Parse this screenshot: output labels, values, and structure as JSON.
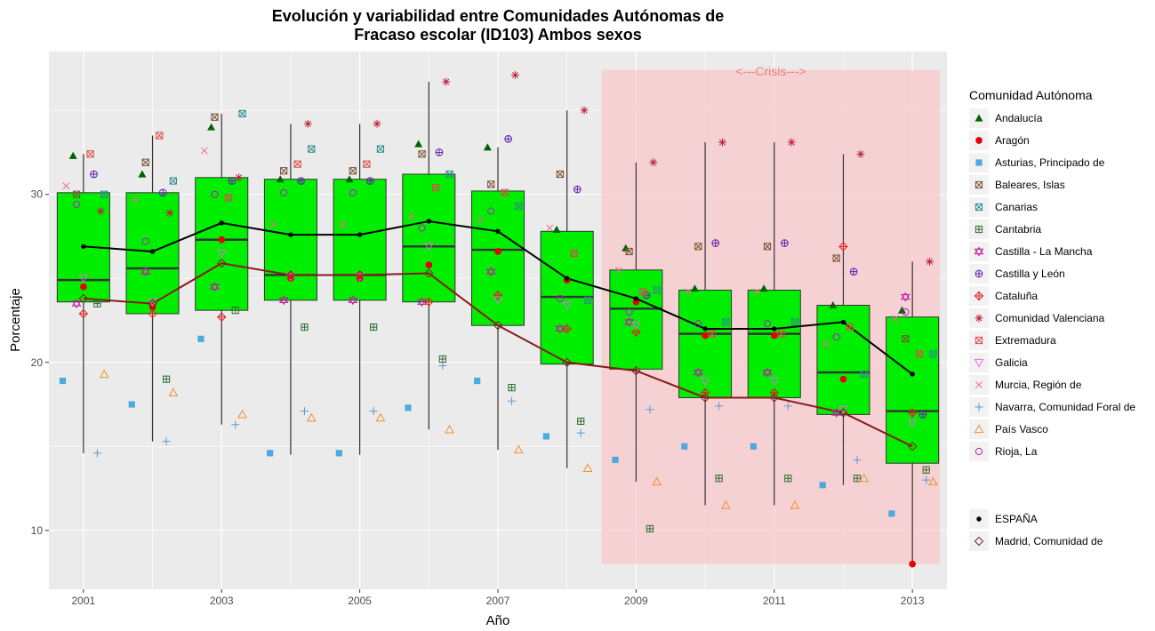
{
  "chart_data": {
    "type": "box",
    "title_line1": "Evolución y variabilidad entre Comunidades Autónomas de",
    "title_line2": "Fracaso escolar (ID103) Ambos sexos",
    "xlabel": "Año",
    "ylabel": "Porcentaje",
    "xlim": [
      2000.5,
      2013.5
    ],
    "ylim": [
      6.5,
      38.5
    ],
    "x_ticks": [
      2001,
      2003,
      2005,
      2007,
      2009,
      2011,
      2013
    ],
    "y_ticks": [
      10,
      20,
      30
    ],
    "grid": true,
    "legend_position": "right",
    "legend_title": "Comunidad Autónoma",
    "crisis": {
      "label": "<---Crisis--->",
      "x_start": 2008.5,
      "x_end": 2013.4,
      "y_start": 8,
      "y_end": 37.4,
      "color": "#f8c8cc"
    },
    "box_color": "#00ee00",
    "years": [
      2001,
      2002,
      2003,
      2004,
      2005,
      2006,
      2007,
      2008,
      2009,
      2010,
      2011,
      2012,
      2013
    ],
    "boxes": [
      {
        "year": 2001,
        "lower": 14.6,
        "q1": 23.6,
        "median": 24.9,
        "q3": 30.1,
        "upper": 32.4
      },
      {
        "year": 2002,
        "lower": 15.3,
        "q1": 22.9,
        "median": 25.6,
        "q3": 30.1,
        "upper": 33.5
      },
      {
        "year": 2003,
        "lower": 16.3,
        "q1": 23.1,
        "median": 27.3,
        "q3": 31.0,
        "upper": 34.8
      },
      {
        "year": 2004,
        "lower": 14.5,
        "q1": 23.7,
        "median": 25.2,
        "q3": 30.9,
        "upper": 34.2
      },
      {
        "year": 2005,
        "lower": 14.5,
        "q1": 23.7,
        "median": 25.2,
        "q3": 30.9,
        "upper": 34.2
      },
      {
        "year": 2006,
        "lower": 16.0,
        "q1": 23.6,
        "median": 26.9,
        "q3": 31.2,
        "upper": 36.7
      },
      {
        "year": 2007,
        "lower": 14.8,
        "q1": 22.2,
        "median": 26.7,
        "q3": 30.2,
        "upper": 32.8
      },
      {
        "year": 2008,
        "lower": 13.7,
        "q1": 19.9,
        "median": 23.9,
        "q3": 27.8,
        "upper": 35.0
      },
      {
        "year": 2009,
        "lower": 12.9,
        "q1": 19.6,
        "median": 23.2,
        "q3": 25.5,
        "upper": 31.9
      },
      {
        "year": 2010,
        "lower": 11.5,
        "q1": 17.9,
        "median": 21.7,
        "q3": 24.3,
        "upper": 33.1
      },
      {
        "year": 2011,
        "lower": 11.5,
        "q1": 17.9,
        "median": 21.7,
        "q3": 24.3,
        "upper": 33.1
      },
      {
        "year": 2012,
        "lower": 12.7,
        "q1": 16.9,
        "median": 19.4,
        "q3": 23.4,
        "upper": 32.4
      },
      {
        "year": 2013,
        "lower": 8.0,
        "q1": 14.0,
        "median": 17.1,
        "q3": 22.7,
        "upper": 26.0
      }
    ],
    "series": [
      {
        "name": "Andalucía",
        "shape": "triangle",
        "color": "#006400",
        "offset": -0.15,
        "values": [
          32.3,
          31.2,
          34.0,
          30.9,
          30.9,
          33.0,
          32.8,
          27.9,
          26.8,
          24.4,
          24.4,
          23.4,
          23.1
        ]
      },
      {
        "name": "Aragón",
        "shape": "dot",
        "color": "#e60000",
        "offset": 0.0,
        "values": [
          24.5,
          23.3,
          27.3,
          25.0,
          25.0,
          25.8,
          26.6,
          24.9,
          23.6,
          21.6,
          21.6,
          19.0,
          8.0
        ]
      },
      {
        "name": "Asturias, Principado de",
        "shape": "square",
        "color": "#4ea9e0",
        "offset": -0.3,
        "values": [
          18.9,
          17.5,
          21.4,
          14.6,
          14.6,
          17.3,
          18.9,
          15.6,
          14.2,
          15.0,
          15.0,
          12.7,
          11.0
        ]
      },
      {
        "name": "Baleares, Islas",
        "shape": "squarex",
        "color": "#7a5230",
        "offset": -0.1,
        "values": [
          30.0,
          31.9,
          34.6,
          31.4,
          31.4,
          32.4,
          30.6,
          31.2,
          26.6,
          26.9,
          26.9,
          26.2,
          21.4
        ]
      },
      {
        "name": "Canarias",
        "shape": "squarex",
        "color": "#2e8b8b",
        "offset": 0.3,
        "values": [
          30.0,
          30.8,
          34.8,
          32.7,
          32.7,
          31.2,
          29.3,
          23.7,
          24.3,
          22.4,
          22.4,
          19.3,
          20.5
        ]
      },
      {
        "name": "Cantabria",
        "shape": "squareplus",
        "color": "#2e6b2e",
        "offset": 0.2,
        "values": [
          23.5,
          19.0,
          23.1,
          22.1,
          22.1,
          20.2,
          18.5,
          16.5,
          10.1,
          13.1,
          13.1,
          13.1,
          13.6
        ]
      },
      {
        "name": "Castilla - La Mancha",
        "shape": "star6",
        "color": "#c020a0",
        "offset": -0.1,
        "values": [
          23.5,
          25.4,
          24.5,
          23.7,
          23.7,
          23.6,
          25.4,
          22.0,
          22.4,
          19.4,
          19.4,
          17.0,
          23.9
        ]
      },
      {
        "name": "Castilla y León",
        "shape": "circleplus",
        "color": "#6020b0",
        "offset": 0.15,
        "values": [
          31.2,
          30.1,
          30.8,
          30.8,
          30.8,
          32.5,
          33.3,
          30.3,
          24.0,
          27.1,
          27.1,
          25.4,
          16.9
        ]
      },
      {
        "name": "Cataluña",
        "shape": "diamondplus",
        "color": "#e02020",
        "offset": 0.0,
        "values": [
          22.9,
          22.9,
          22.7,
          25.2,
          25.2,
          23.6,
          24.0,
          22.0,
          21.8,
          18.2,
          18.2,
          26.9,
          17.0
        ]
      },
      {
        "name": "Comunidad Valenciana",
        "shape": "asterisk",
        "color": "#c0203a",
        "offset": 0.25,
        "values": [
          29.0,
          28.9,
          31.0,
          34.2,
          34.2,
          36.7,
          37.1,
          35.0,
          31.9,
          33.1,
          33.1,
          32.4,
          26.0
        ]
      },
      {
        "name": "Extremadura",
        "shape": "squarex",
        "color": "#e04a4a",
        "offset": 0.1,
        "values": [
          32.4,
          33.5,
          29.8,
          31.8,
          31.8,
          30.4,
          30.1,
          26.5,
          24.2,
          21.7,
          21.7,
          22.1,
          20.5
        ]
      },
      {
        "name": "Galicia",
        "shape": "triangledown",
        "color": "#e070e0",
        "offset": 0.0,
        "values": [
          25.0,
          23.6,
          26.5,
          25.1,
          25.1,
          26.9,
          23.7,
          23.4,
          22.2,
          18.9,
          18.9,
          17.2,
          16.4
        ]
      },
      {
        "name": "Murcia, Región de",
        "shape": "cross",
        "color": "#f06a90",
        "offset": -0.25,
        "values": [
          30.5,
          29.7,
          32.6,
          28.2,
          28.2,
          28.7,
          28.5,
          28.0,
          25.5,
          24.2,
          24.2,
          21.1,
          22.6
        ]
      },
      {
        "name": "Navarra, Comunidad Foral de",
        "shape": "plus",
        "color": "#5a9ad0",
        "offset": 0.2,
        "values": [
          14.6,
          15.3,
          16.3,
          17.1,
          17.1,
          19.8,
          17.7,
          15.8,
          17.2,
          17.4,
          17.4,
          14.2,
          13.0
        ]
      },
      {
        "name": "País Vasco",
        "shape": "triangle-open",
        "color": "#f0902a",
        "offset": 0.3,
        "values": [
          19.3,
          18.2,
          16.9,
          16.7,
          16.7,
          16.0,
          14.8,
          13.7,
          12.9,
          11.5,
          11.5,
          13.1,
          12.9
        ]
      },
      {
        "name": "Rioja, La",
        "shape": "circle",
        "color": "#b020c0",
        "offset": -0.1,
        "values": [
          29.4,
          27.2,
          30.0,
          30.1,
          30.1,
          28.0,
          29.0,
          23.8,
          23.0,
          22.3,
          22.3,
          21.5,
          23.0
        ]
      }
    ],
    "extra_series": [
      {
        "name": "ESPAÑA",
        "shape": "dot-small",
        "color": "#000000",
        "values": [
          26.9,
          26.6,
          28.3,
          27.6,
          27.6,
          28.4,
          27.8,
          25.0,
          23.8,
          22.0,
          22.0,
          22.4,
          19.3
        ]
      },
      {
        "name": "Madrid, Comunidad de",
        "shape": "diamond",
        "color": "#8b1a1a",
        "values": [
          23.8,
          23.5,
          25.9,
          25.2,
          25.2,
          25.3,
          22.2,
          20.0,
          19.5,
          17.9,
          17.9,
          17.0,
          15.0
        ]
      }
    ]
  }
}
